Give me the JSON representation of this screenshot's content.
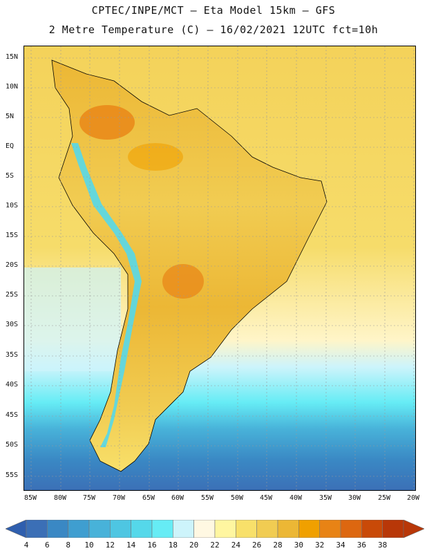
{
  "title": {
    "line1": "CPTEC/INPE/MCT –  Eta Model 15km – GFS",
    "line2": "2 Metre Temperature (C) – 16/02/2021 12UTC fct=10h"
  },
  "lat_axis": [
    "15N",
    "10N",
    "5N",
    "EQ",
    "5S",
    "10S",
    "15S",
    "20S",
    "25S",
    "30S",
    "35S",
    "40S",
    "45S",
    "50S",
    "55S"
  ],
  "lon_axis": [
    "85W",
    "80W",
    "75W",
    "70W",
    "65W",
    "60W",
    "55W",
    "50W",
    "45W",
    "40W",
    "35W",
    "30W",
    "25W",
    "20W"
  ],
  "legend": {
    "values": [
      "4",
      "6",
      "8",
      "10",
      "12",
      "14",
      "16",
      "18",
      "20",
      "22",
      "24",
      "26",
      "28",
      "30",
      "32",
      "34",
      "36",
      "38"
    ],
    "colors": [
      "#3b6fb6",
      "#3a88c4",
      "#3f9ed0",
      "#48b2d9",
      "#4ec6e2",
      "#55d8ea",
      "#66ecf5",
      "#cdf4fb",
      "#fff8e2",
      "#fff6a0",
      "#f8e06a",
      "#f1cc52",
      "#ecb735",
      "#f0a000",
      "#e88315",
      "#dd6710",
      "#c94a08",
      "#b83708"
    ],
    "left_arrow_color": "#2f5fae",
    "right_arrow_color": "#b83708"
  },
  "colors": {
    "frame": "#000000",
    "gridlines": "#9a9a9a",
    "coastline": "#000000"
  }
}
